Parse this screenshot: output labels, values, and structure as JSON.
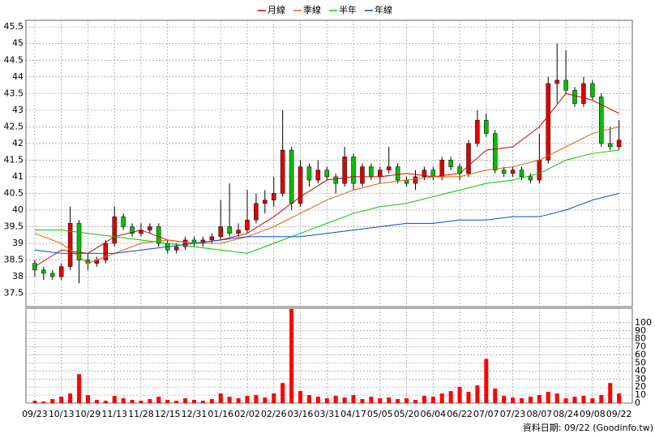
{
  "chart_data": {
    "type": "candlestick",
    "legend": [
      "月線",
      "季線",
      "半年",
      "年線"
    ],
    "footer": "資料日期: 09/22  (Goodinfo.tw)",
    "up_color": "#e00000",
    "down_color": "#00c000",
    "xlim": [
      -1,
      67.5
    ],
    "xticks": [
      {
        "value": 0,
        "label": "09/23"
      },
      {
        "value": 3,
        "label": "10/13"
      },
      {
        "value": 6,
        "label": "10/29"
      },
      {
        "value": 9,
        "label": "11/13"
      },
      {
        "value": 12,
        "label": "11/28"
      },
      {
        "value": 15,
        "label": "12/15"
      },
      {
        "value": 18,
        "label": "12/31"
      },
      {
        "value": 21,
        "label": "01/16"
      },
      {
        "value": 24,
        "label": "02/02"
      },
      {
        "value": 27,
        "label": "02/26"
      },
      {
        "value": 30,
        "label": "03/16"
      },
      {
        "value": 33,
        "label": "03/31"
      },
      {
        "value": 36,
        "label": "04/17"
      },
      {
        "value": 39,
        "label": "05/05"
      },
      {
        "value": 42,
        "label": "05/20"
      },
      {
        "value": 45,
        "label": "06/04"
      },
      {
        "value": 48,
        "label": "06/22"
      },
      {
        "value": 51,
        "label": "07/07"
      },
      {
        "value": 54,
        "label": "07/23"
      },
      {
        "value": 57,
        "label": "08/07"
      },
      {
        "value": 60,
        "label": "08/24"
      },
      {
        "value": 63,
        "label": "09/08"
      },
      {
        "value": 66,
        "label": "09/22"
      }
    ],
    "ylim": [
      37.1,
      45.7
    ],
    "yticks": [
      37.5,
      38,
      38.5,
      39,
      39.5,
      40,
      40.5,
      41,
      41.5,
      42,
      42.5,
      43,
      43.5,
      44,
      44.5,
      45,
      45.5
    ],
    "y2lim": [
      0,
      118
    ],
    "y2ticks": [
      0,
      10,
      20,
      30,
      40,
      50,
      60,
      70,
      80,
      90,
      100
    ],
    "grid": true,
    "candles": {
      "open": [
        38.4,
        38.2,
        38.1,
        38.0,
        38.3,
        39.6,
        38.5,
        38.4,
        38.5,
        39.0,
        39.8,
        39.5,
        39.3,
        39.4,
        39.5,
        39.0,
        38.8,
        38.9,
        39.1,
        39.0,
        39.1,
        39.2,
        39.5,
        39.3,
        39.4,
        39.7,
        40.2,
        40.3,
        40.5,
        41.8,
        40.2,
        41.3,
        40.9,
        41.2,
        41.0,
        40.8,
        41.6,
        40.8,
        41.3,
        41.0,
        41.2,
        41.3,
        40.9,
        40.8,
        41.0,
        41.2,
        41.0,
        41.5,
        41.3,
        41.1,
        42.0,
        42.7,
        42.3,
        41.2,
        41.1,
        41.2,
        41.0,
        40.9,
        41.5,
        43.8,
        43.9,
        43.6,
        43.2,
        43.8,
        43.4,
        42.0,
        41.9
      ],
      "high": [
        38.5,
        38.3,
        38.2,
        38.4,
        40.1,
        39.7,
        38.7,
        38.6,
        39.1,
        40.1,
        39.9,
        39.6,
        39.6,
        39.6,
        39.6,
        39.1,
        39.0,
        39.2,
        39.2,
        39.2,
        39.3,
        40.3,
        40.8,
        39.6,
        40.6,
        40.5,
        40.6,
        41.0,
        43.0,
        41.9,
        41.5,
        41.4,
        41.5,
        41.3,
        41.1,
        41.9,
        41.7,
        41.4,
        41.4,
        41.3,
        41.9,
        41.4,
        41.0,
        41.2,
        41.3,
        41.3,
        41.6,
        41.6,
        41.4,
        42.1,
        43.0,
        42.9,
        42.4,
        41.3,
        41.3,
        41.3,
        41.1,
        42.3,
        44.0,
        45.0,
        44.8,
        43.7,
        44.0,
        43.9,
        43.5,
        42.5,
        42.7
      ],
      "low": [
        38.0,
        37.9,
        37.9,
        37.9,
        38.2,
        37.8,
        38.2,
        38.3,
        38.4,
        38.9,
        39.4,
        39.2,
        39.2,
        39.3,
        38.9,
        38.7,
        38.7,
        38.8,
        38.9,
        38.9,
        39.0,
        39.1,
        39.2,
        39.2,
        39.3,
        39.6,
        39.9,
        40.1,
        40.4,
        40.0,
        40.1,
        40.7,
        40.8,
        40.9,
        40.5,
        40.7,
        40.6,
        40.7,
        40.9,
        40.8,
        41.1,
        40.8,
        40.7,
        40.6,
        40.9,
        40.9,
        40.9,
        41.2,
        40.9,
        41.0,
        41.9,
        42.2,
        41.1,
        41.0,
        41.0,
        40.9,
        40.8,
        40.8,
        41.4,
        43.2,
        43.5,
        43.1,
        43.1,
        43.3,
        41.9,
        41.8,
        41.8
      ],
      "close": [
        38.2,
        38.1,
        38.0,
        38.3,
        39.6,
        38.5,
        38.4,
        38.5,
        39.0,
        39.8,
        39.5,
        39.3,
        39.4,
        39.5,
        39.0,
        38.8,
        38.9,
        39.1,
        39.0,
        39.1,
        39.2,
        39.5,
        39.3,
        39.4,
        39.7,
        40.2,
        40.3,
        40.5,
        41.8,
        40.2,
        41.3,
        40.9,
        41.2,
        41.0,
        40.8,
        41.6,
        40.8,
        41.3,
        41.0,
        41.2,
        41.3,
        40.9,
        40.8,
        41.0,
        41.2,
        41.0,
        41.5,
        41.3,
        41.1,
        42.0,
        42.7,
        42.3,
        41.2,
        41.1,
        41.2,
        41.0,
        40.9,
        41.5,
        43.8,
        43.9,
        43.6,
        43.2,
        43.8,
        43.4,
        42.0,
        41.9,
        42.1
      ]
    },
    "volume": [
      3,
      2,
      5,
      8,
      12,
      36,
      10,
      4,
      3,
      9,
      6,
      4,
      3,
      5,
      8,
      4,
      3,
      6,
      4,
      3,
      5,
      12,
      8,
      6,
      9,
      10,
      7,
      12,
      25,
      117,
      15,
      10,
      8,
      6,
      9,
      7,
      10,
      5,
      8,
      6,
      7,
      5,
      6,
      4,
      9,
      8,
      12,
      15,
      20,
      14,
      22,
      55,
      18,
      9,
      7,
      6,
      8,
      10,
      14,
      12,
      6,
      8,
      9,
      6,
      10,
      25,
      12
    ],
    "volume_color": "#ff0000",
    "series": [
      {
        "name": "月線",
        "color": "#d00000",
        "x": [
          0,
          3,
          6,
          9,
          12,
          15,
          18,
          21,
          24,
          27,
          30,
          33,
          36,
          39,
          42,
          45,
          48,
          51,
          54,
          57,
          60,
          63,
          66
        ],
        "values": [
          38.3,
          38.8,
          38.7,
          39.2,
          39.4,
          39.1,
          39.0,
          39.1,
          39.3,
          39.8,
          40.4,
          40.9,
          41.0,
          41.0,
          41.1,
          41.0,
          41.1,
          41.8,
          41.9,
          42.5,
          43.5,
          43.3,
          42.9
        ]
      },
      {
        "name": "季線",
        "color": "#e06000",
        "x": [
          0,
          3,
          6,
          9,
          12,
          15,
          18,
          21,
          24,
          27,
          30,
          33,
          36,
          39,
          42,
          45,
          48,
          51,
          54,
          57,
          60,
          63,
          66
        ],
        "values": [
          39.3,
          39.0,
          38.4,
          38.7,
          39.0,
          39.1,
          39.0,
          39.0,
          39.2,
          39.5,
          39.9,
          40.3,
          40.6,
          40.8,
          40.9,
          41.0,
          41.0,
          41.2,
          41.3,
          41.5,
          41.9,
          42.3,
          42.5
        ]
      },
      {
        "name": "半年",
        "color": "#00c800",
        "x": [
          0,
          3,
          6,
          9,
          12,
          15,
          18,
          21,
          24,
          27,
          30,
          33,
          36,
          39,
          42,
          45,
          48,
          51,
          54,
          57,
          60,
          63,
          66
        ],
        "values": [
          39.4,
          39.4,
          39.3,
          39.2,
          39.1,
          39.0,
          38.9,
          38.8,
          38.7,
          39.0,
          39.3,
          39.6,
          39.9,
          40.1,
          40.2,
          40.4,
          40.6,
          40.8,
          40.9,
          41.1,
          41.5,
          41.7,
          41.8
        ]
      },
      {
        "name": "年線",
        "color": "#0050c8",
        "x": [
          0,
          3,
          6,
          9,
          12,
          15,
          18,
          21,
          24,
          27,
          30,
          33,
          36,
          39,
          42,
          45,
          48,
          51,
          54,
          57,
          60,
          63,
          66
        ],
        "values": [
          38.8,
          38.7,
          38.7,
          38.7,
          38.8,
          38.9,
          39.0,
          39.1,
          39.2,
          39.2,
          39.2,
          39.3,
          39.4,
          39.5,
          39.6,
          39.6,
          39.7,
          39.7,
          39.8,
          39.8,
          40.0,
          40.3,
          40.5
        ]
      }
    ]
  }
}
